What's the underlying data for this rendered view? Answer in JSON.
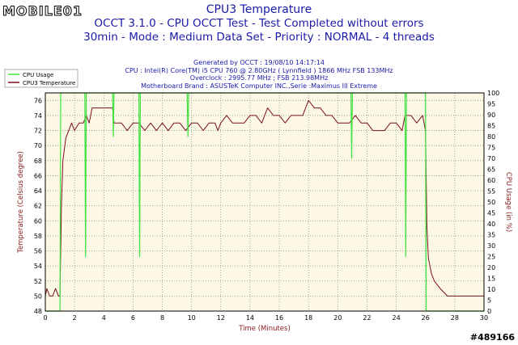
{
  "watermark": {
    "brand": "MOBILE01"
  },
  "badge": "#489166",
  "header": {
    "title": "CPU3 Temperature",
    "line2": "OCCT 3.1.0 - CPU OCCT Test - Test Completed without errors",
    "line3": "30min - Mode : Medium Data Set - Priority : NORMAL - 4 threads",
    "info": [
      "Generated by OCCT : 19/08/10 14:17:14",
      "CPU : Intel(R) Core(TM) i5 CPU 760 @ 2.80GHz ( Lynnfield ) 1866 MHz FSB 133MHz",
      "Overclock : 2995.77 MHz ; FSB 213.98MHz",
      "Motherboard Brand : ASUSTeK Computer INC.,Serie :Maximus III Extreme"
    ]
  },
  "colors": {
    "title": "#1a1aa8",
    "plot_bg": "#fdf8e6",
    "grid": "#7aa07a",
    "temperature": "#7b1020",
    "usage": "#3fe03f",
    "axis_label": "#8b1a1a"
  },
  "chart_data": {
    "type": "line",
    "grid": true,
    "legend_position": "top-left",
    "xlabel": "Time (Minutes)",
    "ylabel": "Temperature (Celsius degree)",
    "y2label": "CPU Usage (in %)",
    "xlim": [
      0,
      30
    ],
    "ylim": [
      48,
      77
    ],
    "y2lim": [
      0,
      100
    ],
    "xticks": [
      0,
      2,
      4,
      6,
      8,
      10,
      12,
      14,
      16,
      18,
      20,
      22,
      24,
      26,
      28,
      30
    ],
    "yticks": [
      48,
      50,
      52,
      54,
      56,
      58,
      60,
      62,
      64,
      66,
      68,
      70,
      72,
      74,
      76
    ],
    "y2ticks": [
      0,
      5,
      10,
      15,
      20,
      25,
      30,
      35,
      40,
      45,
      50,
      55,
      60,
      65,
      70,
      75,
      80,
      85,
      90,
      95,
      100
    ],
    "series": [
      {
        "name": "CPU3 Temperature",
        "axis": "left",
        "x": [
          0,
          0.1,
          0.3,
          0.5,
          0.7,
          0.9,
          1.0,
          1.1,
          1.2,
          1.4,
          1.6,
          1.8,
          2.0,
          2.3,
          2.6,
          2.8,
          3.0,
          3.2,
          3.5,
          3.8,
          4.2,
          4.6,
          4.7,
          4.8,
          5.2,
          5.6,
          6.0,
          6.4,
          6.8,
          7.2,
          7.6,
          8.0,
          8.4,
          8.8,
          9.2,
          9.6,
          10.0,
          10.4,
          10.8,
          11.2,
          11.6,
          11.8,
          12.0,
          12.4,
          12.8,
          13.2,
          13.6,
          14.0,
          14.4,
          14.8,
          15.2,
          15.6,
          16.0,
          16.4,
          16.8,
          17.2,
          17.6,
          17.8,
          18.0,
          18.4,
          18.8,
          19.2,
          19.6,
          20.0,
          20.4,
          20.8,
          21.2,
          21.6,
          22.0,
          22.4,
          22.8,
          23.2,
          23.6,
          24.0,
          24.4,
          24.6,
          25.0,
          25.4,
          25.8,
          25.9,
          26.0,
          26.1,
          26.2,
          26.4,
          26.6,
          27.0,
          27.5,
          28.0,
          28.5,
          29.0,
          29.5,
          30.0
        ],
        "values": [
          50,
          51,
          50,
          50,
          51,
          50,
          50,
          62,
          68,
          71,
          72,
          73,
          72,
          73,
          73,
          74,
          73,
          75,
          75,
          75,
          75,
          75,
          73,
          73,
          73,
          72,
          73,
          73,
          72,
          73,
          72,
          73,
          72,
          73,
          73,
          72,
          73,
          73,
          72,
          73,
          73,
          72,
          73,
          74,
          73,
          73,
          73,
          74,
          74,
          73,
          75,
          74,
          74,
          73,
          74,
          74,
          74,
          75,
          76,
          75,
          75,
          74,
          74,
          73,
          73,
          73,
          74,
          73,
          73,
          72,
          72,
          72,
          73,
          73,
          72,
          74,
          74,
          73,
          74,
          73,
          72,
          59,
          55,
          53,
          52,
          51,
          50,
          50,
          50,
          50,
          50,
          50
        ]
      },
      {
        "name": "CPU Usage",
        "axis": "right",
        "x": [
          0,
          1.0,
          1.05,
          1.1,
          2.7,
          2.75,
          2.8,
          2.85,
          4.6,
          4.65,
          4.7,
          6.4,
          6.45,
          6.5,
          9.7,
          9.75,
          9.8,
          20.9,
          20.95,
          21.0,
          24.6,
          24.65,
          24.7,
          26.0,
          26.05,
          26.1,
          30
        ],
        "values": [
          0,
          0,
          100,
          100,
          100,
          25,
          100,
          100,
          100,
          80,
          100,
          100,
          25,
          100,
          100,
          80,
          100,
          100,
          70,
          100,
          100,
          25,
          100,
          100,
          0,
          0,
          0
        ]
      }
    ]
  }
}
